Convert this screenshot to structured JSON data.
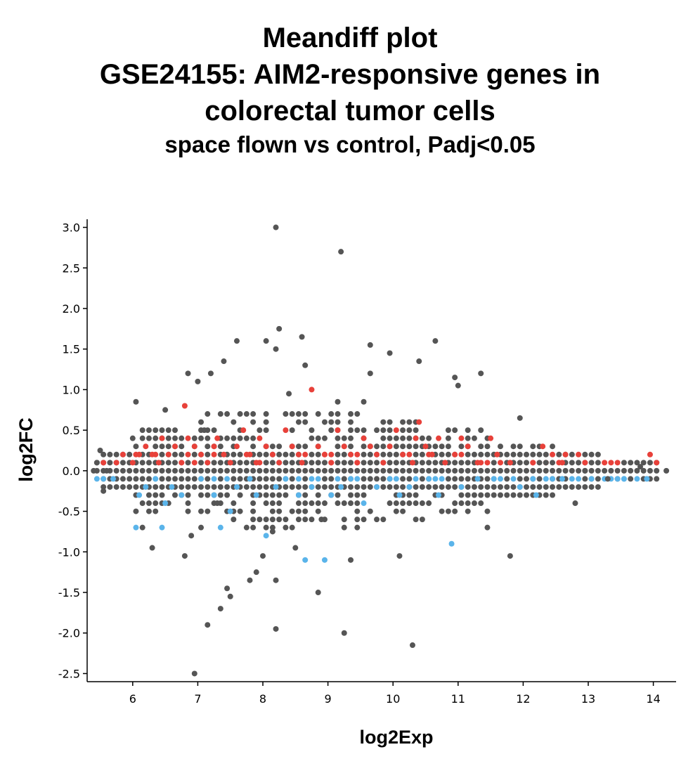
{
  "title": {
    "line1": "Meandiff plot",
    "line2": "GSE24155: AIM2-responsive genes in",
    "line3": "colorectal tumor cells",
    "subtitle": "space flown vs control, Padj<0.05"
  },
  "colors": {
    "up": "#e8413a",
    "down": "#5ab4ea",
    "ns": "#555555",
    "axis": "#000000"
  },
  "chart_data": {
    "type": "scatter",
    "title": "Meandiff plot",
    "subtitle": "space flown vs control, Padj<0.05",
    "xlabel": "log2Exp",
    "ylabel": "log2FC",
    "xlim": [
      5.3,
      14.35
    ],
    "ylim": [
      -2.6,
      3.1
    ],
    "xticks": [
      6,
      7,
      8,
      9,
      10,
      11,
      12,
      13,
      14
    ],
    "xtick_labels": [
      "6",
      "7",
      "8",
      "9",
      "10",
      "11",
      "12",
      "13",
      "14"
    ],
    "yticks": [
      3.0,
      2.5,
      2.0,
      1.5,
      1.0,
      0.5,
      0.0,
      -0.5,
      -1.0,
      -1.5,
      -2.0,
      -2.5
    ],
    "ytick_labels": [
      "3.0",
      "2.5",
      "2.0",
      "1.5",
      "1.0",
      "0.5",
      "0.0",
      "-0.5",
      "-1.0",
      "-1.5",
      "-2.0",
      "-2.5"
    ],
    "grid": false,
    "legend": "none",
    "series": [
      {
        "group": "up",
        "points": [
          [
            5.55,
            0.1
          ],
          [
            5.75,
            0.1
          ],
          [
            5.85,
            0.2
          ],
          [
            6.0,
            0.1
          ],
          [
            6.1,
            0.2
          ],
          [
            6.2,
            0.3
          ],
          [
            6.3,
            0.2
          ],
          [
            6.4,
            0.1
          ],
          [
            6.45,
            0.4
          ],
          [
            6.55,
            0.2
          ],
          [
            6.65,
            0.3
          ],
          [
            6.75,
            0.1
          ],
          [
            6.8,
            0.8
          ],
          [
            6.85,
            0.4
          ],
          [
            6.95,
            0.3
          ],
          [
            7.05,
            0.2
          ],
          [
            7.15,
            0.1
          ],
          [
            7.25,
            0.3
          ],
          [
            7.3,
            0.4
          ],
          [
            7.4,
            0.2
          ],
          [
            7.5,
            0.1
          ],
          [
            7.6,
            0.3
          ],
          [
            7.7,
            0.5
          ],
          [
            7.8,
            0.2
          ],
          [
            7.9,
            0.1
          ],
          [
            7.95,
            0.4
          ],
          [
            8.05,
            0.3
          ],
          [
            8.15,
            0.2
          ],
          [
            8.25,
            0.1
          ],
          [
            8.35,
            0.5
          ],
          [
            8.45,
            0.3
          ],
          [
            8.55,
            0.2
          ],
          [
            8.6,
            0.1
          ],
          [
            8.75,
            1.0
          ],
          [
            8.85,
            0.3
          ],
          [
            8.95,
            0.2
          ],
          [
            9.05,
            0.1
          ],
          [
            9.15,
            0.5
          ],
          [
            9.25,
            0.3
          ],
          [
            9.35,
            0.2
          ],
          [
            9.45,
            0.1
          ],
          [
            9.55,
            0.4
          ],
          [
            9.65,
            0.3
          ],
          [
            9.75,
            0.2
          ],
          [
            9.85,
            0.1
          ],
          [
            9.95,
            0.3
          ],
          [
            10.05,
            0.5
          ],
          [
            10.15,
            0.2
          ],
          [
            10.3,
            0.1
          ],
          [
            10.35,
            0.4
          ],
          [
            10.4,
            0.6
          ],
          [
            10.5,
            0.3
          ],
          [
            10.6,
            0.2
          ],
          [
            10.7,
            0.4
          ],
          [
            10.8,
            0.1
          ],
          [
            10.95,
            0.2
          ],
          [
            11.05,
            0.4
          ],
          [
            11.15,
            0.3
          ],
          [
            11.3,
            0.1
          ],
          [
            11.5,
            0.4
          ],
          [
            11.6,
            0.2
          ],
          [
            11.8,
            0.1
          ],
          [
            12.15,
            0.1
          ],
          [
            12.3,
            0.3
          ],
          [
            12.6,
            0.1
          ],
          [
            12.65,
            0.2
          ],
          [
            12.95,
            0.1
          ],
          [
            13.95,
            0.2
          ],
          [
            14.05,
            0.1
          ]
        ]
      },
      {
        "group": "down",
        "points": [
          [
            5.55,
            -0.1
          ],
          [
            5.7,
            -0.1
          ],
          [
            6.05,
            -0.7
          ],
          [
            6.1,
            -0.3
          ],
          [
            6.2,
            -0.2
          ],
          [
            6.35,
            -0.1
          ],
          [
            6.45,
            -0.7
          ],
          [
            6.5,
            -0.4
          ],
          [
            6.6,
            -0.2
          ],
          [
            6.75,
            -0.3
          ],
          [
            7.05,
            -0.1
          ],
          [
            7.25,
            -0.3
          ],
          [
            7.35,
            -0.7
          ],
          [
            7.5,
            -0.5
          ],
          [
            7.6,
            -0.2
          ],
          [
            7.8,
            -0.1
          ],
          [
            7.9,
            -0.3
          ],
          [
            8.05,
            -0.8
          ],
          [
            8.2,
            -0.2
          ],
          [
            8.35,
            -0.1
          ],
          [
            8.55,
            -0.3
          ],
          [
            8.65,
            -1.1
          ],
          [
            8.75,
            -0.2
          ],
          [
            8.95,
            -1.1
          ],
          [
            9.05,
            -0.3
          ],
          [
            9.2,
            -0.2
          ],
          [
            9.35,
            -0.1
          ],
          [
            9.55,
            -0.4
          ],
          [
            9.75,
            -0.2
          ],
          [
            9.95,
            -0.1
          ],
          [
            10.1,
            -0.3
          ],
          [
            10.25,
            -0.2
          ],
          [
            10.55,
            -0.1
          ],
          [
            10.7,
            -0.3
          ],
          [
            10.9,
            -0.9
          ],
          [
            11.05,
            -0.2
          ],
          [
            11.3,
            -0.1
          ],
          [
            11.55,
            -0.1
          ],
          [
            11.95,
            -0.2
          ],
          [
            12.15,
            -0.1
          ],
          [
            12.2,
            -0.3
          ],
          [
            12.45,
            -0.1
          ],
          [
            12.6,
            -0.1
          ],
          [
            13.05,
            -0.1
          ],
          [
            13.45,
            -0.1
          ],
          [
            13.55,
            -0.1
          ],
          [
            13.9,
            -0.1
          ]
        ]
      },
      {
        "group": "ns",
        "points": [
          [
            5.4,
            0.0
          ],
          [
            5.45,
            0.1
          ],
          [
            5.5,
            0.25
          ],
          [
            5.55,
            -0.25
          ],
          [
            5.6,
            0.0
          ],
          [
            6.0,
            0.4
          ],
          [
            6.05,
            0.85
          ],
          [
            6.15,
            -0.7
          ],
          [
            6.3,
            -0.95
          ],
          [
            6.35,
            0.5
          ],
          [
            6.5,
            0.75
          ],
          [
            6.85,
            1.2
          ],
          [
            6.8,
            -1.05
          ],
          [
            6.9,
            -0.8
          ],
          [
            7.0,
            1.1
          ],
          [
            7.1,
            0.5
          ],
          [
            7.15,
            -1.9
          ],
          [
            7.2,
            1.2
          ],
          [
            7.3,
            -0.4
          ],
          [
            7.35,
            -1.7
          ],
          [
            7.4,
            1.35
          ],
          [
            7.45,
            -1.45
          ],
          [
            7.5,
            -1.55
          ],
          [
            7.6,
            1.6
          ],
          [
            7.8,
            -1.35
          ],
          [
            7.9,
            -1.25
          ],
          [
            8.0,
            -1.05
          ],
          [
            8.05,
            1.6
          ],
          [
            8.15,
            -0.75
          ],
          [
            8.2,
            1.5
          ],
          [
            8.2,
            3.0
          ],
          [
            8.2,
            -1.35
          ],
          [
            8.2,
            -1.95
          ],
          [
            8.25,
            1.75
          ],
          [
            8.4,
            0.95
          ],
          [
            8.5,
            -0.95
          ],
          [
            8.6,
            1.65
          ],
          [
            8.65,
            1.3
          ],
          [
            8.85,
            -1.5
          ],
          [
            8.9,
            -0.6
          ],
          [
            9.15,
            0.85
          ],
          [
            9.2,
            2.7
          ],
          [
            9.25,
            -2.0
          ],
          [
            9.35,
            -1.1
          ],
          [
            9.55,
            0.85
          ],
          [
            9.65,
            1.55
          ],
          [
            9.65,
            1.2
          ],
          [
            9.95,
            1.45
          ],
          [
            10.1,
            -1.05
          ],
          [
            10.3,
            -2.15
          ],
          [
            10.4,
            1.35
          ],
          [
            10.65,
            1.6
          ],
          [
            10.95,
            1.15
          ],
          [
            11.0,
            1.05
          ],
          [
            11.35,
            1.2
          ],
          [
            11.45,
            -0.7
          ],
          [
            11.8,
            -1.05
          ],
          [
            11.95,
            0.65
          ],
          [
            12.35,
            0.1
          ],
          [
            12.8,
            -0.4
          ],
          [
            12.95,
            0.0
          ],
          [
            13.3,
            -0.1
          ],
          [
            13.8,
            0.05
          ],
          [
            14.2,
            0.0
          ],
          [
            6.95,
            -2.5
          ]
        ]
      }
    ]
  }
}
